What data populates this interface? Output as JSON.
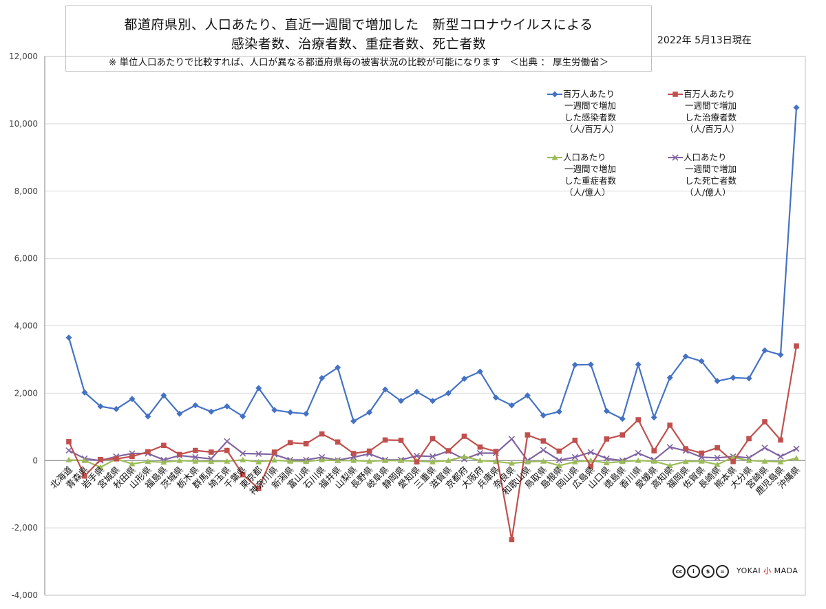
{
  "header": {
    "title_line1": "都道府県別、人口あたり、直近一週間で増加した　新型コロナウイルスによる",
    "title_line2": "感染者数、治療者数、重症者数、死亡者数",
    "note": "※ 単位人口あたりで比較すれば、人口が異なる都道府県毎の被害状況の比較が可能になります　＜出典 ： 厚生労働省＞",
    "date": "2022年 5月13日現在"
  },
  "footer": {
    "license_icons": [
      "cc-icon",
      "by-icon",
      "nc-icon",
      "nd-icon"
    ],
    "brand_prefix": "YOKAI",
    "brand_mark": "小",
    "brand_suffix": "MADA"
  },
  "chart_data": {
    "type": "line",
    "ylim": [
      -4000,
      12000
    ],
    "yticks": [
      -4000,
      -2000,
      0,
      2000,
      4000,
      6000,
      8000,
      10000,
      12000
    ],
    "ytick_labels": [
      "-4,000",
      "-2,000",
      "0",
      "2,000",
      "4,000",
      "6,000",
      "8,000",
      "10,000",
      "12,000"
    ],
    "grid": true,
    "legend_position": "top-right",
    "categories": [
      "北海道",
      "青森県",
      "岩手県",
      "宮城県",
      "秋田県",
      "山形県",
      "福島県",
      "茨城県",
      "栃木県",
      "群馬県",
      "埼玉県",
      "千葉県",
      "東京都",
      "神奈川県",
      "新潟県",
      "富山県",
      "石川県",
      "福井県",
      "山梨県",
      "長野県",
      "岐阜県",
      "静岡県",
      "愛知県",
      "三重県",
      "滋賀県",
      "京都府",
      "大阪府",
      "兵庫県",
      "奈良県",
      "和歌山県",
      "鳥取県",
      "島根県",
      "岡山県",
      "広島県",
      "山口県",
      "徳島県",
      "香川県",
      "愛媛県",
      "高知県",
      "福岡県",
      "佐賀県",
      "長崎県",
      "熊本県",
      "大分県",
      "宮崎県",
      "鹿児島県",
      "沖縄県"
    ],
    "series": [
      {
        "name": "百万人あたり 一週間で増加 した感染者数 （人/百万人）",
        "legend_lines": [
          "百万人あたり",
          "一週間で増加",
          "した感染者数",
          "（人/百万人）"
        ],
        "color": "#4472C4",
        "marker": "diamond",
        "values": [
          3650,
          2020,
          1610,
          1530,
          1830,
          1310,
          1930,
          1390,
          1640,
          1450,
          1610,
          1310,
          2150,
          1500,
          1430,
          1390,
          2450,
          2760,
          1170,
          1430,
          2110,
          1770,
          2040,
          1770,
          2000,
          2430,
          2640,
          1870,
          1640,
          1930,
          1340,
          1450,
          2840,
          2850,
          1470,
          1240,
          2850,
          1280,
          2460,
          3090,
          2950,
          2360,
          2460,
          2440,
          3270,
          3140,
          10480
        ]
      },
      {
        "name": "百万人あたり 一週間で増加 した治療者数 （人/百万人）",
        "legend_lines": [
          "百万人あたり",
          "一週間で増加",
          "した治療者数",
          "（人/百万人）"
        ],
        "color": "#C0504D",
        "marker": "square",
        "values": [
          560,
          -460,
          30,
          50,
          120,
          260,
          450,
          180,
          300,
          250,
          300,
          -420,
          -830,
          250,
          530,
          500,
          790,
          550,
          210,
          280,
          610,
          600,
          -40,
          650,
          290,
          720,
          400,
          270,
          -2350,
          760,
          580,
          280,
          600,
          -170,
          640,
          760,
          1210,
          290,
          1050,
          350,
          220,
          380,
          -30,
          650,
          1150,
          610,
          3400
        ]
      },
      {
        "name": "人口あたり 一週間で増加 した重症者数 （人/億人）",
        "legend_lines": [
          "人口あたり",
          "一週間で増加",
          "した重症者数",
          "（人/億人）"
        ],
        "color": "#9BBB59",
        "marker": "triangle",
        "values": [
          20,
          0,
          -200,
          50,
          -100,
          -30,
          -50,
          0,
          -20,
          -30,
          -20,
          20,
          -40,
          10,
          -20,
          -30,
          20,
          0,
          0,
          -20,
          0,
          0,
          -20,
          -40,
          0,
          120,
          0,
          -30,
          -80,
          -40,
          -20,
          -150,
          -40,
          0,
          -70,
          -30,
          0,
          -20,
          -150,
          -30,
          -20,
          -120,
          100,
          0,
          -20,
          -40,
          70
        ]
      },
      {
        "name": "人口あたり 一週間で増加 した死亡者数 （人/億人）",
        "legend_lines": [
          "人口あたり",
          "一週間で増加",
          "した死亡者数",
          "（人/億人）"
        ],
        "color": "#8064A2",
        "marker": "x",
        "values": [
          300,
          60,
          0,
          120,
          210,
          210,
          20,
          150,
          100,
          50,
          570,
          210,
          200,
          180,
          20,
          20,
          100,
          10,
          100,
          200,
          20,
          20,
          140,
          120,
          280,
          40,
          220,
          220,
          640,
          0,
          310,
          10,
          100,
          250,
          60,
          0,
          220,
          20,
          400,
          290,
          100,
          80,
          120,
          80,
          380,
          120,
          350
        ]
      }
    ]
  }
}
